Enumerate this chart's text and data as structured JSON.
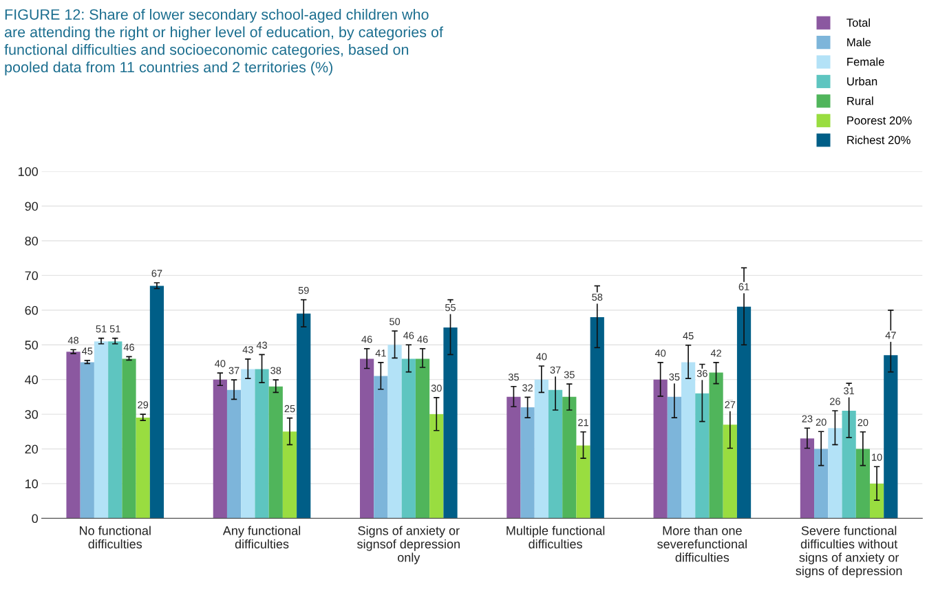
{
  "chart_data": {
    "type": "bar",
    "title": "FIGURE 12: Share of lower secondary school-aged children who are attending the right or higher level of education, by categories of functional difficulties and socioeconomic categories, based on pooled data from 11 countries and 2 territories (%)",
    "categories": [
      "No functional\ndifficulties",
      "Any functional\ndifficulties",
      "Signs of anxiety or\nsignsof depression\nonly",
      "Multiple functional\ndifficulties",
      "More than one\nseverefunctional\ndifficulties",
      "Severe functional\ndifficulties without\nsigns of anxiety or\nsigns of depression"
    ],
    "series": [
      {
        "name": "Total",
        "color": "#8b58a0",
        "values": [
          48,
          40,
          46,
          35,
          40,
          23
        ],
        "errors": [
          [
            47.5,
            48.6
          ],
          [
            38.3,
            41.9
          ],
          [
            43.2,
            48.9
          ],
          [
            32.2,
            38
          ],
          [
            35.2,
            44.9
          ],
          [
            20.2,
            26
          ]
        ]
      },
      {
        "name": "Male",
        "color": "#7db5da",
        "values": [
          45,
          37,
          41,
          32,
          35,
          20
        ],
        "errors": [
          [
            44.6,
            45.5
          ],
          [
            34.3,
            39.9
          ],
          [
            37.2,
            44.9
          ],
          [
            29,
            34.9
          ],
          [
            29,
            40.9
          ],
          [
            15.2,
            25
          ]
        ]
      },
      {
        "name": "Female",
        "color": "#b3e2f7",
        "values": [
          51,
          43,
          50,
          40,
          45,
          26
        ],
        "errors": [
          [
            50.3,
            51.9
          ],
          [
            40.3,
            45.9
          ],
          [
            46.2,
            54
          ],
          [
            36.3,
            43.9
          ],
          [
            40.3,
            49.9
          ],
          [
            21.2,
            31
          ]
        ]
      },
      {
        "name": "Urban",
        "color": "#5ec5c0",
        "values": [
          51,
          43,
          46,
          37,
          36,
          31
        ],
        "errors": [
          [
            50.3,
            51.9
          ],
          [
            39.1,
            47.2
          ],
          [
            42.2,
            50
          ],
          [
            31.2,
            42.9
          ],
          [
            27.9,
            44.4
          ],
          [
            23.3,
            38.9
          ]
        ]
      },
      {
        "name": "Rural",
        "color": "#50b55b",
        "values": [
          46,
          38,
          46,
          35,
          42,
          20
        ],
        "errors": [
          [
            45.6,
            46.6
          ],
          [
            36.3,
            39.9
          ],
          [
            43.5,
            48.9
          ],
          [
            31.2,
            38.7
          ],
          [
            38.8,
            44.9
          ],
          [
            15.2,
            24.9
          ]
        ]
      },
      {
        "name": "Poorest 20%",
        "color": "#99dd40",
        "values": [
          29,
          25,
          30,
          21,
          27,
          10
        ],
        "errors": [
          [
            28.2,
            30
          ],
          [
            21.2,
            28.9
          ],
          [
            25.3,
            34.8
          ],
          [
            17.3,
            24.9
          ],
          [
            20.2,
            34
          ],
          [
            5.2,
            14.9
          ]
        ]
      },
      {
        "name": "Richest 20%",
        "color": "#005e87",
        "values": [
          67,
          59,
          55,
          58,
          61,
          47
        ],
        "errors": [
          [
            66.2,
            67.9
          ],
          [
            55.2,
            63
          ],
          [
            47.2,
            63
          ],
          [
            49.2,
            67
          ],
          [
            50,
            72.2
          ],
          [
            42.2,
            60
          ]
        ]
      }
    ],
    "ylim": [
      0,
      100
    ],
    "yticks": [
      0,
      10,
      20,
      30,
      40,
      50,
      60,
      70,
      80,
      90,
      100
    ],
    "grid": "y",
    "legend": "top right",
    "data_labels": true
  }
}
